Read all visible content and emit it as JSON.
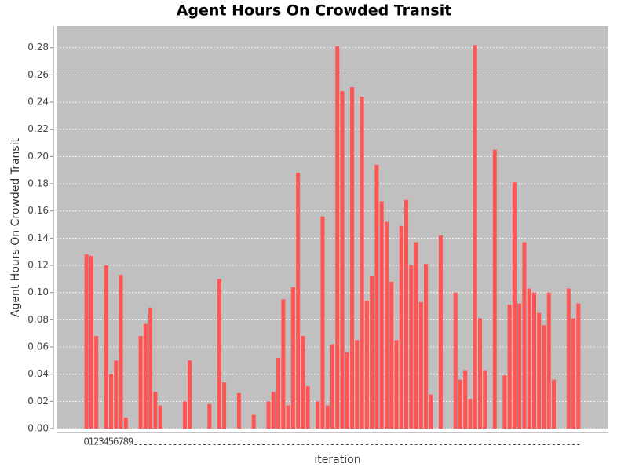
{
  "chart_data": {
    "type": "bar",
    "title": "Agent Hours On Crowded Transit",
    "x_label": "iteration",
    "y_label": "Agent Hours On Crowded Transit",
    "categories": [
      "0",
      "1",
      "2",
      "3",
      "4",
      "5",
      "6",
      "7",
      "8",
      "9",
      null,
      null,
      null,
      null,
      null,
      null,
      null,
      null,
      null,
      null,
      null,
      null,
      null,
      null,
      null,
      null,
      null,
      null,
      null,
      null,
      null,
      null,
      null,
      null,
      null,
      null,
      null,
      null,
      null,
      null,
      null,
      null,
      null,
      null,
      null,
      null,
      null,
      null,
      null,
      null,
      null,
      null,
      null,
      null,
      null,
      null,
      null,
      null,
      null,
      null,
      null,
      null,
      null,
      null,
      null,
      null,
      null,
      null,
      null,
      null,
      null,
      null,
      null,
      null,
      null,
      null,
      null,
      null,
      null,
      null,
      null,
      null,
      null,
      null,
      null,
      null,
      null,
      null,
      null,
      null,
      null,
      null,
      null,
      null,
      null,
      null,
      null,
      null,
      null,
      null,
      null
    ],
    "values": [
      0.128,
      0.127,
      0.068,
      0,
      0.12,
      0.04,
      0.05,
      0.113,
      0.008,
      0,
      0,
      0.068,
      0.077,
      0.089,
      0.027,
      0.017,
      0,
      0,
      0,
      0,
      0.02,
      0.05,
      0,
      0,
      0,
      0.018,
      0,
      0.11,
      0.034,
      0,
      0,
      0.026,
      0,
      0,
      0.01,
      0,
      0,
      0.02,
      0.027,
      0.052,
      0.095,
      0.017,
      0.104,
      0.188,
      0.068,
      0.031,
      0,
      0.02,
      0.156,
      0.017,
      0.062,
      0.281,
      0.248,
      0.056,
      0.251,
      0.065,
      0.244,
      0.094,
      0.112,
      0.194,
      0.167,
      0.152,
      0.108,
      0.065,
      0.149,
      0.168,
      0.12,
      0.137,
      0.093,
      0.121,
      0.025,
      0,
      0.142,
      0,
      0,
      0.1,
      0.036,
      0.043,
      0.022,
      0.282,
      0.081,
      0.043,
      0,
      0.205,
      0,
      0.039,
      0.091,
      0.181,
      0.092,
      0.137,
      0.103,
      0.1,
      0.085,
      0.076,
      0.1,
      0.036,
      0,
      0,
      0.103,
      0.081,
      0.092
    ],
    "color": "#ff5555",
    "ylim": [
      0,
      0.296
    ],
    "yticks": [
      {
        "value": 0,
        "label": "0.00"
      },
      {
        "value": 0.02,
        "label": "0.02"
      },
      {
        "value": 0.04,
        "label": "0.04"
      },
      {
        "value": 0.06,
        "label": "0.06"
      },
      {
        "value": 0.08,
        "label": "0.08"
      },
      {
        "value": 0.1,
        "label": "0.10"
      },
      {
        "value": 0.12,
        "label": "0.12"
      },
      {
        "value": 0.14,
        "label": "0.14"
      },
      {
        "value": 0.16,
        "label": "0.16"
      },
      {
        "value": 0.18,
        "label": "0.18"
      },
      {
        "value": 0.2,
        "label": "0.20"
      },
      {
        "value": 0.22,
        "label": "0.22"
      },
      {
        "value": 0.24,
        "label": "0.24"
      },
      {
        "value": 0.26,
        "label": "0.26"
      },
      {
        "value": 0.28,
        "label": "0.28"
      }
    ],
    "grid": true
  }
}
